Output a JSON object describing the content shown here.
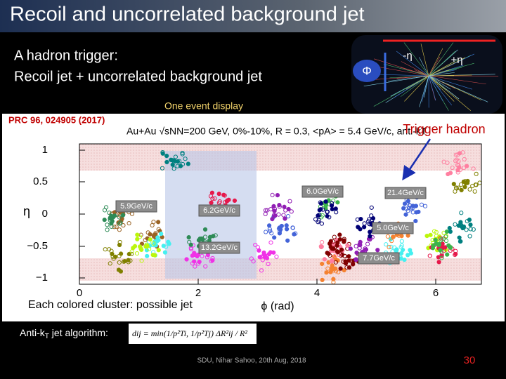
{
  "header": {
    "title": "Recoil and uncorrelated background jet"
  },
  "intro": {
    "line1": "A hadron trigger:",
    "line2": "Recoil jet +  uncorrelated background jet"
  },
  "inset": {
    "phi": "Φ",
    "minus_eta": "-η",
    "plus_eta": "+η"
  },
  "caption": "One event display",
  "citation": "PRC 96, 024905 (2017)",
  "plot": {
    "title": "Au+Au √sNN=200 GeV, 0%-10%, R = 0.3, <pA> = 5.4 GeV/c, anti-kT",
    "y_label": "η",
    "x_label": "ϕ (rad)",
    "y_ticks": [
      "1",
      "0.5",
      "0",
      "−0.5",
      "−1"
    ],
    "x_ticks": [
      "0",
      "2",
      "4",
      "6"
    ],
    "jet_labels": [
      "5.9GeV/c",
      "6.2GeV/c",
      "13.2GeV/c",
      "6.0GeV/c",
      "21.4GeV/c",
      "5.0GeV/c",
      "7.7GeV/c"
    ]
  },
  "annotations": {
    "trigger": "Trigger hadron",
    "cluster": "Each colored cluster: possible jet"
  },
  "algorithm": {
    "label_parts": [
      "Anti-k",
      "T",
      " jet algorithm:"
    ],
    "formula": "dij = min(1/p²Ti, 1/p²Tj) ΔR²ij / R²"
  },
  "footer": {
    "credit": "SDU, Nihar Sahoo, 20th Aug, 2018",
    "page": "30"
  }
}
